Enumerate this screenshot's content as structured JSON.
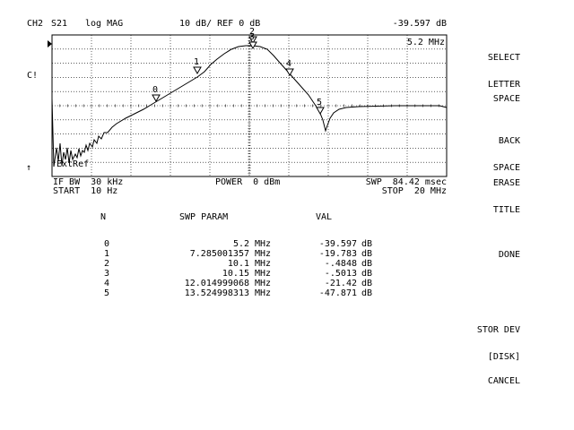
{
  "header": {
    "channel": "CH2",
    "param": "S21",
    "format": "log MAG",
    "scale": "10 dB/ REF 0 dB",
    "marker_value": "-39.597 dB",
    "marker_freq": "5.2 MHz"
  },
  "side": {
    "cal": "C!",
    "arrow": "↑"
  },
  "plot_labels": {
    "extref": "ExtRef",
    "marker_labels": [
      "0",
      "1",
      "2",
      "3",
      "4",
      "5"
    ]
  },
  "footer": {
    "ifbw": "IF BW  30 kHz",
    "start": "START  10 Hz",
    "power": "POWER  0 dBm",
    "swp": "SWP  84.42 msec",
    "stop": "STOP  20 MHz"
  },
  "table": {
    "headers": {
      "n": "N",
      "swp": "SWP PARAM",
      "val": "VAL"
    },
    "rows": [
      {
        "n": "0",
        "swp": "5.2",
        "swp_unit": "MHz",
        "val": "-39.597",
        "val_unit": "dB"
      },
      {
        "n": "1",
        "swp": "7.285001357",
        "swp_unit": "MHz",
        "val": "-19.783",
        "val_unit": "dB"
      },
      {
        "n": "2",
        "swp": "10.1",
        "swp_unit": "MHz",
        "val": "-.4848",
        "val_unit": "dB"
      },
      {
        "n": "3",
        "swp": "10.15",
        "swp_unit": "MHz",
        "val": "-.5013",
        "val_unit": "dB"
      },
      {
        "n": "4",
        "swp": "12.014999068",
        "swp_unit": "MHz",
        "val": "-21.42",
        "val_unit": "dB"
      },
      {
        "n": "5",
        "swp": "13.524998313",
        "swp_unit": "MHz",
        "val": "-47.871",
        "val_unit": "dB"
      }
    ]
  },
  "softkeys": {
    "select_letter_1": "SELECT",
    "select_letter_2": "LETTER",
    "space": "SPACE",
    "back_space_1": "BACK",
    "back_space_2": "SPACE",
    "erase_title_1": "ERASE",
    "erase_title_2": "TITLE",
    "done": "DONE",
    "stor_dev_1": "STOR DEV",
    "stor_dev_2": "[DISK]",
    "cancel": "CANCEL"
  }
}
